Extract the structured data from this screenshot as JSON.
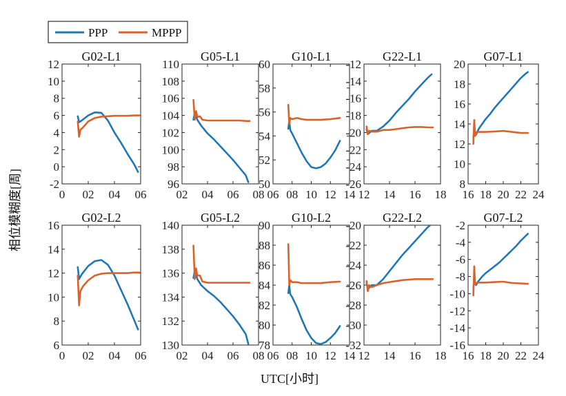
{
  "legend": [
    {
      "name": "PPP",
      "color": "#1f77b4"
    },
    {
      "name": "MPPP",
      "color": "#d9622b"
    }
  ],
  "ylabel": "相位模糊度[周]",
  "xlabel": "UTC[小时]",
  "chart_data": [
    {
      "type": "line",
      "title": "G02-L1",
      "xticks": [
        "0",
        "02",
        "04",
        "06"
      ],
      "xlim": [
        0,
        6
      ],
      "ylim": [
        -2,
        12
      ],
      "yticks": [
        -2,
        0,
        2,
        4,
        6,
        8,
        10,
        12
      ],
      "series": [
        {
          "name": "PPP",
          "x": [
            1.2,
            1.3,
            1.5,
            2.0,
            2.5,
            3.0,
            3.5,
            4.0,
            4.5,
            5.0,
            5.5,
            5.8
          ],
          "y": [
            5.9,
            5.2,
            5.4,
            6.0,
            6.35,
            6.3,
            5.4,
            4.0,
            2.8,
            1.5,
            0.3,
            -0.6
          ]
        },
        {
          "name": "MPPP",
          "x": [
            1.2,
            1.3,
            1.4,
            1.6,
            2.0,
            2.5,
            3.0,
            3.5,
            4.0,
            4.5,
            5.0,
            5.5,
            5.9
          ],
          "y": [
            5.3,
            3.5,
            4.3,
            4.6,
            5.3,
            5.7,
            5.85,
            5.9,
            5.95,
            5.95,
            5.95,
            6.0,
            6.0
          ]
        }
      ]
    },
    {
      "type": "line",
      "title": "G05-L1",
      "xticks": [
        "02",
        "04",
        "06",
        "08"
      ],
      "xlim": [
        2,
        8
      ],
      "ylim": [
        96,
        110
      ],
      "yticks": [
        96,
        98,
        100,
        102,
        104,
        106,
        108,
        110
      ],
      "series": [
        {
          "name": "PPP",
          "x": [
            2.9,
            3.0,
            3.2,
            3.5,
            4.0,
            4.5,
            5.0,
            5.5,
            6.0,
            6.5,
            7.0,
            7.2
          ],
          "y": [
            103.5,
            104.3,
            103.5,
            102.8,
            101.9,
            101.2,
            100.4,
            99.6,
            98.8,
            97.9,
            97.0,
            96.2
          ]
        },
        {
          "name": "MPPP",
          "x": [
            2.9,
            3.0,
            3.1,
            3.2,
            3.4,
            3.6,
            4.0,
            4.5,
            5.0,
            5.5,
            6.0,
            6.5,
            7.0,
            7.3
          ],
          "y": [
            105.8,
            103.5,
            104.5,
            103.8,
            103.9,
            103.5,
            103.4,
            103.4,
            103.4,
            103.4,
            103.4,
            103.4,
            103.35,
            103.35
          ]
        }
      ]
    },
    {
      "type": "line",
      "title": "G10-L1",
      "xticks": [
        "06",
        "08",
        "10",
        "12",
        "14"
      ],
      "xlim": [
        6,
        14
      ],
      "ylim": [
        50,
        60
      ],
      "yticks": [
        50,
        52,
        54,
        56,
        58,
        60
      ],
      "series": [
        {
          "name": "PPP",
          "x": [
            7.6,
            7.7,
            7.8,
            8.0,
            8.5,
            9.0,
            9.5,
            10.0,
            10.5,
            11.0,
            11.5,
            12.0,
            12.5,
            13.0
          ],
          "y": [
            54.6,
            55.3,
            54.5,
            54.2,
            53.4,
            52.6,
            51.9,
            51.4,
            51.3,
            51.4,
            51.7,
            52.2,
            52.8,
            53.6
          ]
        },
        {
          "name": "MPPP",
          "x": [
            7.6,
            7.7,
            7.8,
            8.0,
            8.5,
            9.0,
            9.5,
            10.0,
            11.0,
            12.0,
            13.0
          ],
          "y": [
            56.6,
            55.0,
            55.5,
            55.4,
            55.5,
            55.4,
            55.35,
            55.35,
            55.35,
            55.4,
            55.5
          ]
        }
      ]
    },
    {
      "type": "line",
      "title": "G22-L1",
      "xticks": [
        "12",
        "14",
        "16",
        "18"
      ],
      "xlim": [
        12,
        18
      ],
      "ylim": [
        -26,
        -12
      ],
      "yticks": [
        -26,
        -24,
        -22,
        -20,
        -18,
        -16,
        -14,
        -12
      ],
      "series": [
        {
          "name": "PPP",
          "x": [
            12.2,
            12.3,
            12.6,
            13.0,
            13.5,
            14.0,
            14.5,
            15.0,
            15.5,
            16.0,
            16.5,
            17.0,
            17.3
          ],
          "y": [
            -19.6,
            -20.2,
            -19.8,
            -19.8,
            -19.3,
            -18.6,
            -17.7,
            -16.9,
            -16.1,
            -15.2,
            -14.4,
            -13.6,
            -13.2
          ]
        },
        {
          "name": "MPPP",
          "x": [
            12.2,
            12.3,
            12.4,
            12.6,
            13.0,
            13.5,
            14.0,
            14.5,
            15.0,
            15.5,
            16.0,
            16.5,
            17.0,
            17.4
          ],
          "y": [
            -19.3,
            -20.2,
            -19.8,
            -19.9,
            -19.9,
            -19.7,
            -19.7,
            -19.6,
            -19.5,
            -19.4,
            -19.35,
            -19.35,
            -19.4,
            -19.4
          ]
        }
      ]
    },
    {
      "type": "line",
      "title": "G07-L1",
      "xticks": [
        "16",
        "18",
        "20",
        "22",
        "24"
      ],
      "xlim": [
        16,
        24
      ],
      "ylim": [
        8,
        20
      ],
      "yticks": [
        8,
        10,
        12,
        14,
        16,
        18,
        20
      ],
      "series": [
        {
          "name": "PPP",
          "x": [
            16.6,
            16.7,
            16.9,
            17.2,
            17.6,
            18.0,
            18.5,
            19.0,
            19.5,
            20.0,
            20.5,
            21.0,
            21.5,
            22.0,
            22.5,
            22.8
          ],
          "y": [
            12.6,
            13.4,
            12.9,
            13.5,
            14.0,
            14.5,
            15.0,
            15.6,
            16.1,
            16.6,
            17.1,
            17.6,
            18.1,
            18.6,
            19.0,
            19.2
          ]
        },
        {
          "name": "MPPP",
          "x": [
            16.6,
            16.7,
            16.8,
            17.0,
            17.5,
            18.0,
            19.0,
            20.0,
            21.0,
            22.0,
            22.8
          ],
          "y": [
            12.0,
            14.4,
            12.8,
            13.2,
            13.2,
            13.2,
            13.25,
            13.3,
            13.2,
            13.1,
            13.1
          ]
        }
      ]
    },
    {
      "type": "line",
      "title": "G02-L2",
      "xticks": [
        "0",
        "02",
        "04",
        "06"
      ],
      "xlim": [
        0,
        6
      ],
      "ylim": [
        6,
        16
      ],
      "yticks": [
        6,
        8,
        10,
        12,
        14,
        16
      ],
      "series": [
        {
          "name": "PPP",
          "x": [
            1.2,
            1.3,
            1.5,
            2.0,
            2.5,
            3.0,
            3.5,
            4.0,
            4.5,
            5.0,
            5.5,
            5.8
          ],
          "y": [
            12.5,
            11.5,
            11.9,
            12.6,
            13.0,
            13.1,
            12.7,
            11.8,
            10.6,
            9.4,
            8.1,
            7.3
          ]
        },
        {
          "name": "MPPP",
          "x": [
            1.2,
            1.3,
            1.4,
            1.6,
            2.0,
            2.5,
            3.0,
            3.5,
            4.0,
            4.5,
            5.0,
            5.5,
            5.9
          ],
          "y": [
            11.8,
            9.3,
            10.5,
            10.9,
            11.4,
            11.8,
            11.95,
            12.0,
            12.0,
            12.0,
            12.0,
            12.05,
            12.05
          ]
        }
      ]
    },
    {
      "type": "line",
      "title": "G05-L2",
      "xticks": [
        "02",
        "04",
        "06",
        "08"
      ],
      "xlim": [
        2,
        8
      ],
      "ylim": [
        130,
        140
      ],
      "yticks": [
        130,
        132,
        134,
        136,
        138,
        140
      ],
      "series": [
        {
          "name": "PPP",
          "x": [
            2.9,
            3.0,
            3.2,
            3.5,
            4.0,
            4.5,
            5.0,
            5.5,
            6.0,
            6.5,
            7.0,
            7.2
          ],
          "y": [
            135.6,
            136.2,
            135.5,
            135.0,
            134.5,
            134.1,
            133.6,
            133.0,
            132.4,
            131.7,
            130.9,
            130.1
          ]
        },
        {
          "name": "MPPP",
          "x": [
            2.9,
            3.0,
            3.1,
            3.2,
            3.4,
            3.6,
            4.0,
            4.5,
            5.0,
            5.5,
            6.0,
            6.5,
            7.0,
            7.3
          ],
          "y": [
            138.3,
            135.5,
            136.4,
            135.8,
            135.8,
            135.3,
            135.2,
            135.2,
            135.2,
            135.2,
            135.2,
            135.2,
            135.2,
            135.2
          ]
        }
      ]
    },
    {
      "type": "line",
      "title": "G10-L2",
      "xticks": [
        "06",
        "08",
        "10",
        "12",
        "14"
      ],
      "xlim": [
        6,
        14
      ],
      "ylim": [
        78,
        90
      ],
      "yticks": [
        78,
        80,
        82,
        84,
        86,
        88,
        90
      ],
      "series": [
        {
          "name": "PPP",
          "x": [
            7.6,
            7.7,
            7.8,
            8.0,
            8.5,
            9.0,
            9.5,
            10.0,
            10.5,
            11.0,
            11.5,
            12.0,
            12.5,
            13.0
          ],
          "y": [
            83.2,
            84.0,
            83.1,
            82.8,
            81.8,
            80.6,
            79.5,
            78.7,
            78.2,
            78.1,
            78.3,
            78.7,
            79.2,
            79.9
          ]
        },
        {
          "name": "MPPP",
          "x": [
            7.6,
            7.7,
            7.8,
            8.0,
            8.5,
            9.0,
            9.5,
            10.0,
            11.0,
            12.0,
            13.0
          ],
          "y": [
            88.1,
            84.0,
            84.5,
            84.3,
            84.3,
            84.2,
            84.2,
            84.2,
            84.2,
            84.3,
            84.35
          ]
        }
      ]
    },
    {
      "type": "line",
      "title": "G22-L2",
      "xticks": [
        "12",
        "14",
        "16",
        "18"
      ],
      "xlim": [
        12,
        18
      ],
      "ylim": [
        -32,
        -20
      ],
      "yticks": [
        -32,
        -30,
        -28,
        -26,
        -24,
        -22,
        -20
      ],
      "series": [
        {
          "name": "PPP",
          "x": [
            12.2,
            12.3,
            12.6,
            13.0,
            13.5,
            14.0,
            14.5,
            15.0,
            15.5,
            16.0,
            16.5,
            17.0,
            17.3
          ],
          "y": [
            -25.8,
            -26.4,
            -26.0,
            -26.0,
            -25.4,
            -24.6,
            -23.8,
            -23.0,
            -22.3,
            -21.6,
            -20.9,
            -20.2,
            -19.9
          ]
        },
        {
          "name": "MPPP",
          "x": [
            12.2,
            12.3,
            12.4,
            12.6,
            13.0,
            13.5,
            14.0,
            14.5,
            15.0,
            15.5,
            16.0,
            16.5,
            17.0,
            17.4
          ],
          "y": [
            -25.6,
            -26.6,
            -26.0,
            -26.2,
            -26.0,
            -25.8,
            -25.7,
            -25.6,
            -25.5,
            -25.45,
            -25.4,
            -25.4,
            -25.4,
            -25.4
          ]
        }
      ]
    },
    {
      "type": "line",
      "title": "G07-L2",
      "xticks": [
        "16",
        "18",
        "20",
        "22",
        "24"
      ],
      "xlim": [
        16,
        24
      ],
      "ylim": [
        -16,
        -2
      ],
      "yticks": [
        -16,
        -14,
        -12,
        -10,
        -8,
        -6,
        -4,
        -2
      ],
      "series": [
        {
          "name": "PPP",
          "x": [
            16.6,
            16.7,
            16.9,
            17.2,
            17.6,
            18.0,
            18.5,
            19.0,
            19.5,
            20.0,
            20.5,
            21.0,
            21.5,
            22.0,
            22.5,
            22.8
          ],
          "y": [
            -9.4,
            -8.5,
            -9.0,
            -8.5,
            -8.0,
            -7.6,
            -7.2,
            -6.8,
            -6.4,
            -5.9,
            -5.4,
            -4.9,
            -4.4,
            -3.8,
            -3.3,
            -3.0
          ]
        },
        {
          "name": "MPPP",
          "x": [
            16.6,
            16.7,
            16.8,
            17.0,
            17.5,
            18.0,
            19.0,
            20.0,
            21.0,
            22.0,
            22.8
          ],
          "y": [
            -10.2,
            -6.8,
            -8.9,
            -8.7,
            -8.7,
            -8.7,
            -8.65,
            -8.6,
            -8.75,
            -8.8,
            -8.85
          ]
        }
      ]
    }
  ]
}
